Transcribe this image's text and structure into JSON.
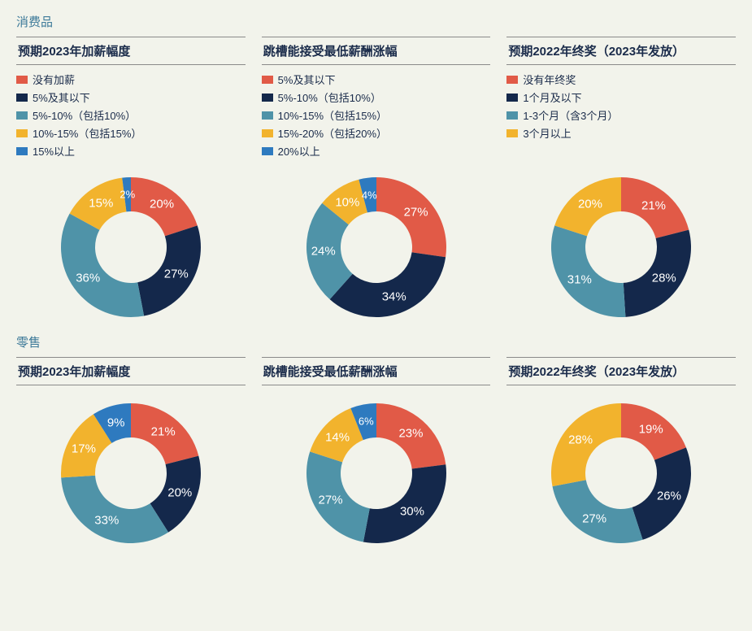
{
  "palette": {
    "red": "#e15a47",
    "navy": "#14284b",
    "teal": "#4f93a8",
    "gold": "#f2b32d",
    "blue": "#2e7abf"
  },
  "chart_style": {
    "type": "donut",
    "outer_radius": 86,
    "inner_radius": 44,
    "label_radius": 65,
    "start_angle_deg": 270,
    "direction": "clockwise",
    "label_color": "#ffffff",
    "label_fontsize": 15,
    "small_label_fontsize": 13,
    "background": "#f2f3eb"
  },
  "sections": [
    {
      "label": "消费品",
      "charts": [
        {
          "title": "预期2023年加薪幅度",
          "legend": [
            {
              "label": "没有加薪",
              "color_key": "red"
            },
            {
              "label": "5%及其以下",
              "color_key": "navy"
            },
            {
              "label": "5%-10%（包括10%）",
              "color_key": "teal"
            },
            {
              "label": "10%-15%（包括15%）",
              "color_key": "gold"
            },
            {
              "label": "15%以上",
              "color_key": "blue"
            }
          ],
          "slices": [
            {
              "value": 20,
              "color_key": "red",
              "label": "20%"
            },
            {
              "value": 27,
              "color_key": "navy",
              "label": "27%"
            },
            {
              "value": 36,
              "color_key": "teal",
              "label": "36%"
            },
            {
              "value": 15,
              "color_key": "gold",
              "label": "15%"
            },
            {
              "value": 2,
              "color_key": "blue",
              "label": "2%",
              "small": true
            }
          ]
        },
        {
          "title": "跳槽能接受最低薪酬涨幅",
          "legend": [
            {
              "label": "5%及其以下",
              "color_key": "red"
            },
            {
              "label": "5%-10%（包括10%）",
              "color_key": "navy"
            },
            {
              "label": "10%-15%（包括15%）",
              "color_key": "teal"
            },
            {
              "label": "15%-20%（包括20%）",
              "color_key": "gold"
            },
            {
              "label": "20%以上",
              "color_key": "blue"
            }
          ],
          "slices": [
            {
              "value": 27,
              "color_key": "red",
              "label": "27%"
            },
            {
              "value": 34,
              "color_key": "navy",
              "label": "34%"
            },
            {
              "value": 24,
              "color_key": "teal",
              "label": "24%"
            },
            {
              "value": 10,
              "color_key": "gold",
              "label": "10%"
            },
            {
              "value": 4,
              "color_key": "blue",
              "label": "4%",
              "small": true
            }
          ]
        },
        {
          "title": "预期2022年终奖（2023年发放）",
          "legend": [
            {
              "label": "没有年终奖",
              "color_key": "red"
            },
            {
              "label": "1个月及以下",
              "color_key": "navy"
            },
            {
              "label": "1-3个月（含3个月）",
              "color_key": "teal"
            },
            {
              "label": "3个月以上",
              "color_key": "gold"
            }
          ],
          "slices": [
            {
              "value": 21,
              "color_key": "red",
              "label": "21%"
            },
            {
              "value": 28,
              "color_key": "navy",
              "label": "28%"
            },
            {
              "value": 31,
              "color_key": "teal",
              "label": "31%"
            },
            {
              "value": 20,
              "color_key": "gold",
              "label": "20%"
            }
          ]
        }
      ]
    },
    {
      "label": "零售",
      "charts": [
        {
          "title": "预期2023年加薪幅度",
          "legend": [],
          "slices": [
            {
              "value": 21,
              "color_key": "red",
              "label": "21%"
            },
            {
              "value": 20,
              "color_key": "navy",
              "label": "20%"
            },
            {
              "value": 33,
              "color_key": "teal",
              "label": "33%"
            },
            {
              "value": 17,
              "color_key": "gold",
              "label": "17%"
            },
            {
              "value": 9,
              "color_key": "blue",
              "label": "9%"
            }
          ]
        },
        {
          "title": "跳槽能接受最低薪酬涨幅",
          "legend": [],
          "slices": [
            {
              "value": 23,
              "color_key": "red",
              "label": "23%"
            },
            {
              "value": 30,
              "color_key": "navy",
              "label": "30%"
            },
            {
              "value": 27,
              "color_key": "teal",
              "label": "27%"
            },
            {
              "value": 14,
              "color_key": "gold",
              "label": "14%"
            },
            {
              "value": 6,
              "color_key": "blue",
              "label": "6%",
              "small": true
            }
          ]
        },
        {
          "title": "预期2022年终奖（2023年发放）",
          "legend": [],
          "slices": [
            {
              "value": 19,
              "color_key": "red",
              "label": "19%"
            },
            {
              "value": 26,
              "color_key": "navy",
              "label": "26%"
            },
            {
              "value": 27,
              "color_key": "teal",
              "label": "27%"
            },
            {
              "value": 28,
              "color_key": "gold",
              "label": "28%"
            }
          ]
        }
      ]
    }
  ]
}
